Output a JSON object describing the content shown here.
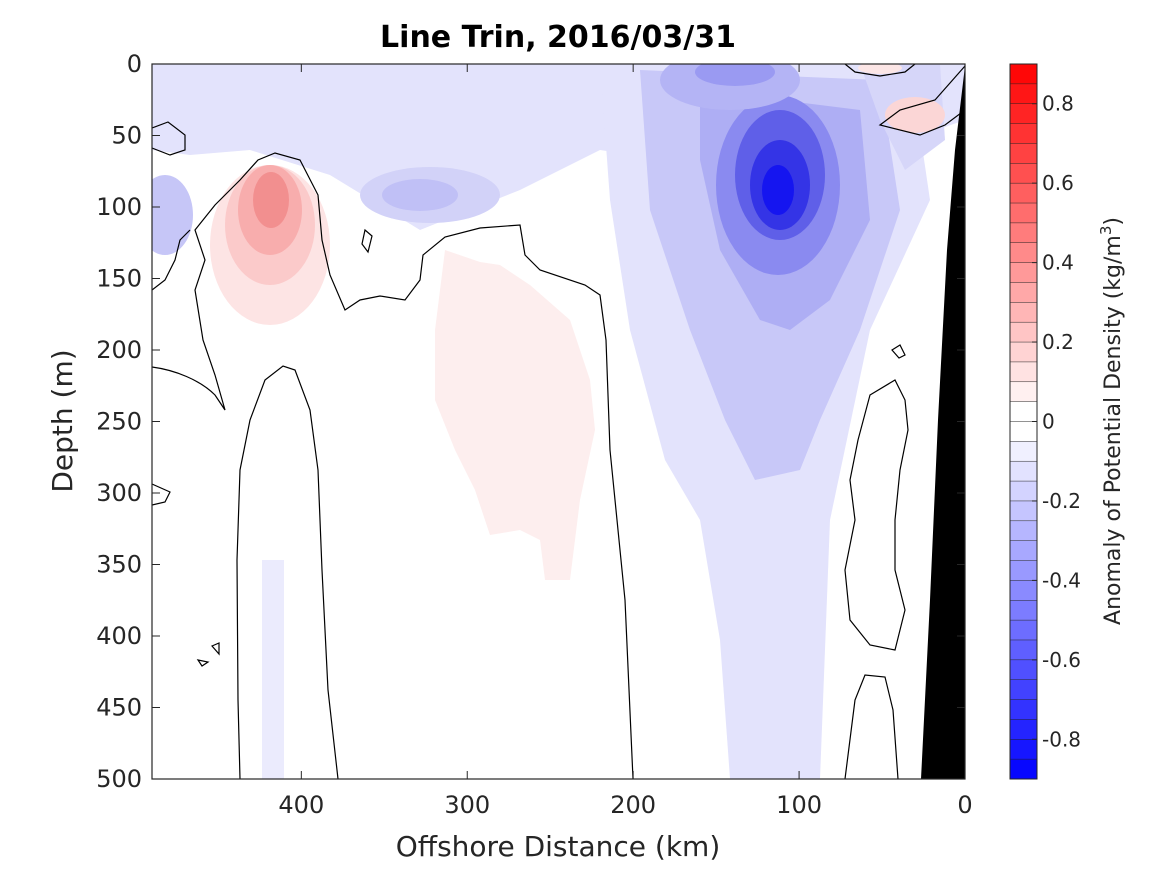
{
  "chart_data": {
    "type": "heatmap",
    "title": "Line Trin, 2016/03/31",
    "xlabel": "Offshore Distance (km)",
    "ylabel": "Depth (m)",
    "xlim": [
      490,
      0
    ],
    "ylim": [
      0,
      500
    ],
    "xticks": [
      400,
      300,
      200,
      100,
      0
    ],
    "xtick_labels": [
      "400",
      "300",
      "200",
      "100",
      "0"
    ],
    "yticks": [
      0,
      50,
      100,
      150,
      200,
      250,
      300,
      350,
      400,
      450,
      500
    ],
    "ytick_labels": [
      "0",
      "50",
      "100",
      "150",
      "200",
      "250",
      "300",
      "350",
      "400",
      "450",
      "500"
    ],
    "colorbar": {
      "label": "Anomaly of Potential Density (kg/m",
      "label_superscript": "3",
      "label_suffix": ")",
      "range": [
        -0.9,
        0.9
      ],
      "levels": 36,
      "ticks": [
        0.8,
        0.6,
        0.4,
        0.2,
        0,
        -0.2,
        -0.4,
        -0.6,
        -0.8
      ],
      "tick_labels": [
        "0.8",
        "0.6",
        "0.4",
        "0.2",
        "0",
        "-0.2",
        "-0.4",
        "-0.6",
        "-0.8"
      ],
      "colors": {
        "negative": "#0000ff",
        "zero": "#ffffff",
        "positive": "#ff0000"
      }
    },
    "features": [
      {
        "kind": "positive_anomaly",
        "x_km": 415,
        "depth_m": 100,
        "peak_value": 0.4
      },
      {
        "kind": "positive_anomaly",
        "x_km": 280,
        "depth_m": 240,
        "peak_value": 0.06
      },
      {
        "kind": "negative_anomaly",
        "x_km": 115,
        "depth_m": 90,
        "peak_value": -0.8
      },
      {
        "kind": "negative_anomaly",
        "x_km": 140,
        "depth_m": 10,
        "peak_value": -0.35
      },
      {
        "kind": "negative_anomaly",
        "x_km": 95,
        "depth_m": 260,
        "peak_value": -0.25
      },
      {
        "kind": "negative_anomaly",
        "x_km": 330,
        "depth_m": 95,
        "peak_value": -0.3
      },
      {
        "kind": "positive_anomaly",
        "x_km": 30,
        "depth_m": 35,
        "peak_value": 0.2
      },
      {
        "kind": "bathymetry",
        "color": "#000000"
      }
    ],
    "zero_contour_color": "#000000"
  }
}
